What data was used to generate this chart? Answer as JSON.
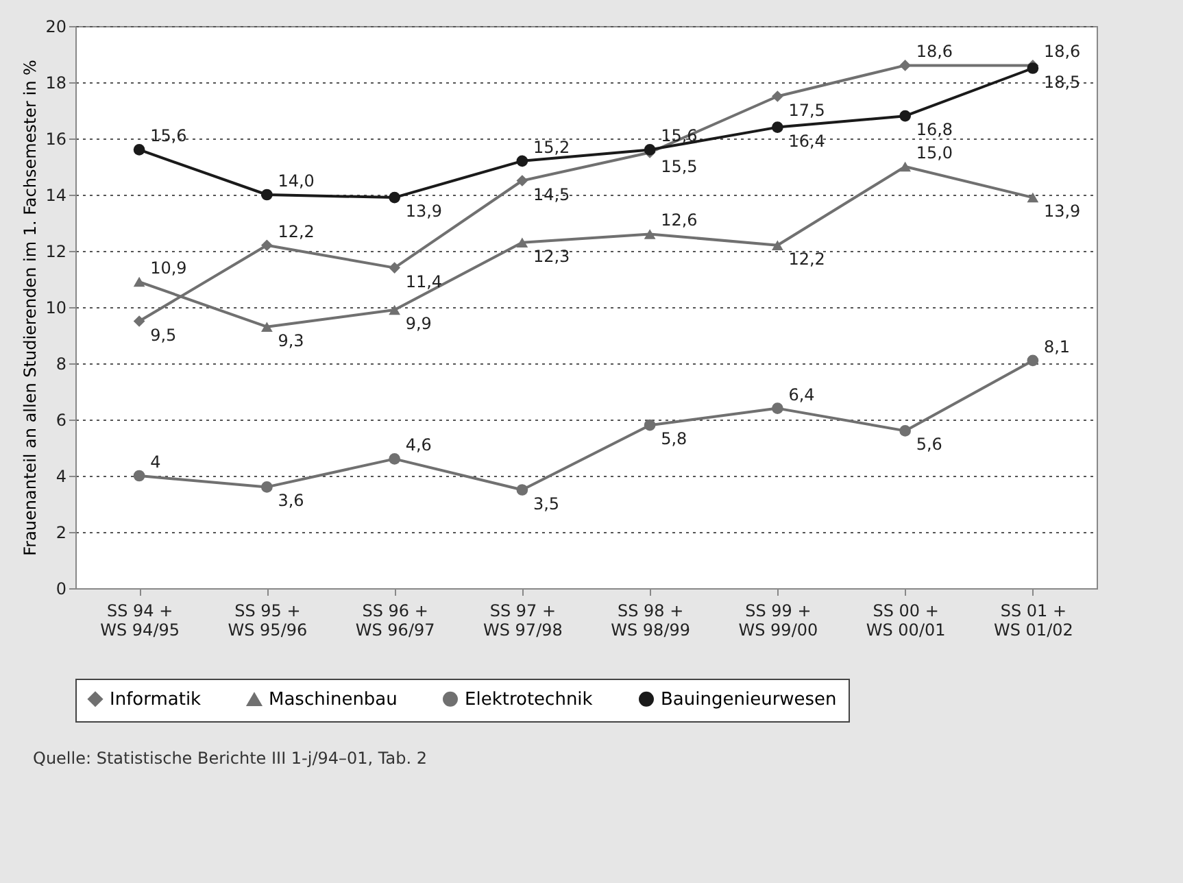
{
  "chart_data": {
    "type": "line",
    "ylabel": "Frauenanteil an allen Studierenden im 1. Fachsemester in %",
    "categories": [
      "SS 94 +\nWS 94/95",
      "SS 95 +\nWS 95/96",
      "SS 96 +\nWS 96/97",
      "SS 97 +\nWS 97/98",
      "SS 98 +\nWS 98/99",
      "SS 99 +\nWS 99/00",
      "SS 00 +\nWS 00/01",
      "SS 01 +\nWS 01/02"
    ],
    "series": [
      {
        "name": "Informatik",
        "color": "#707070",
        "marker": "diamond",
        "values": [
          9.5,
          12.2,
          11.4,
          14.5,
          15.5,
          17.5,
          18.6,
          18.6
        ],
        "value_labels": [
          "9,5",
          "12,2",
          "11,4",
          "14,5",
          "15,5",
          "17,5",
          "18,6",
          "18,6"
        ]
      },
      {
        "name": "Maschinenbau",
        "color": "#707070",
        "marker": "triangle",
        "values": [
          10.9,
          9.3,
          9.9,
          12.3,
          12.6,
          12.2,
          15.0,
          13.9
        ],
        "value_labels": [
          "10,9",
          "9,3",
          "9,9",
          "12,3",
          "12,6",
          "12,2",
          "15,0",
          "13,9"
        ]
      },
      {
        "name": "Elektrotechnik",
        "color": "#707070",
        "marker": "circle",
        "values": [
          4,
          3.6,
          4.6,
          3.5,
          5.8,
          6.4,
          5.6,
          8.1
        ],
        "value_labels": [
          "4",
          "3,6",
          "4,6",
          "3,5",
          "5,8",
          "6,4",
          "5,6",
          "8,1"
        ]
      },
      {
        "name": "Bauingenieurwesen",
        "color": "#1a1a1a",
        "marker": "circle",
        "values": [
          15.6,
          14.0,
          13.9,
          15.2,
          15.6,
          16.4,
          16.8,
          18.5
        ],
        "value_labels": [
          "15,6",
          "14,0",
          "13,9",
          "15,2",
          "15,6",
          "16,4",
          "16,8",
          "18,5"
        ]
      }
    ],
    "ylim": [
      0,
      20
    ],
    "yticks": [
      0,
      2,
      4,
      6,
      8,
      10,
      12,
      14,
      16,
      18,
      20
    ],
    "grid": "y",
    "legend": "bottom",
    "line_style": "solid",
    "annotations": [
      "Quelle: Statistische Berichte III 1-j/94–01, Tab. 2"
    ]
  }
}
